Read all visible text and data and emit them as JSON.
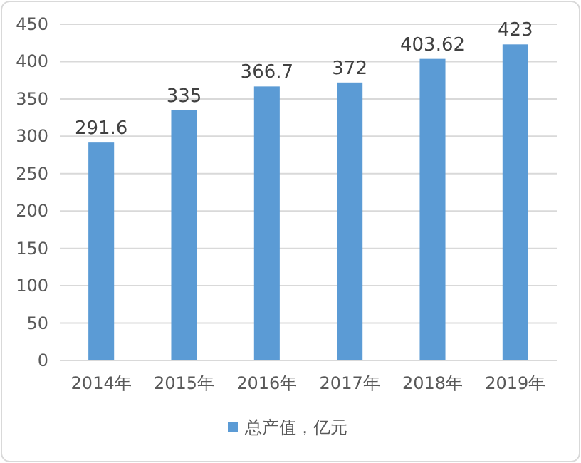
{
  "chart_data": {
    "type": "bar",
    "categories": [
      "2014年",
      "2015年",
      "2016年",
      "2017年",
      "2018年",
      "2019年"
    ],
    "series": [
      {
        "name": "总产值，亿元",
        "color": "#5b9bd5",
        "values": [
          291.6,
          335,
          366.7,
          372,
          403.62,
          423
        ]
      }
    ],
    "ylim": [
      0,
      450
    ],
    "yticks": [
      0,
      50,
      100,
      150,
      200,
      250,
      300,
      350,
      400,
      450
    ],
    "grid": "y",
    "legend": "bottom",
    "data_labels": true
  }
}
